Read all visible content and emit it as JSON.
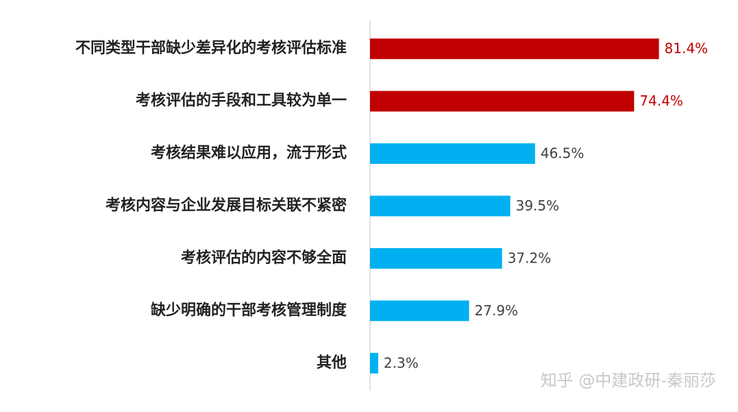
{
  "chart_data": {
    "type": "bar",
    "orientation": "horizontal",
    "categories": [
      "不同类型干部缺少差异化的考核评估标准",
      "考核评估的手段和工具较为单一",
      "考核结果难以应用，流于形式",
      "考核内容与企业发展目标关联不紧密",
      "考核评估的内容不够全面",
      "缺少明确的干部考核管理制度",
      "其他"
    ],
    "values": [
      81.4,
      74.4,
      46.5,
      39.5,
      37.2,
      27.9,
      2.3
    ],
    "value_labels": [
      "81.4%",
      "74.4%",
      "46.5%",
      "39.5%",
      "37.2%",
      "27.9%",
      "2.3%"
    ],
    "colors": [
      "#c00000",
      "#c00000",
      "#00b0f0",
      "#00b0f0",
      "#00b0f0",
      "#00b0f0",
      "#00b0f0"
    ],
    "label_colors": [
      "#c00000",
      "#c00000",
      "#404040",
      "#404040",
      "#404040",
      "#404040",
      "#404040"
    ],
    "xlim": [
      0,
      100
    ],
    "watermark": "知乎 @中建政研-秦丽莎"
  }
}
